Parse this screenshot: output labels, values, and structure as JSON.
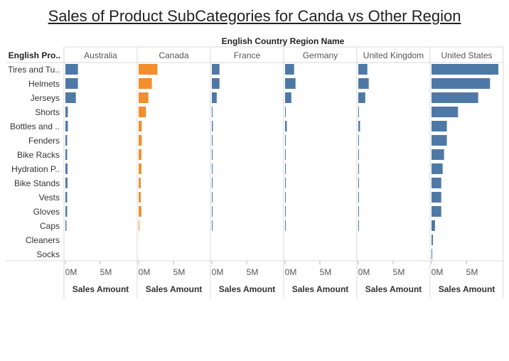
{
  "chart_data": {
    "type": "bar",
    "title": "Sales of Product SubCategories for Canda vs Other Region",
    "column_header": "English Country Region Name",
    "row_header": "English Pro..",
    "xlabel": "Sales Amount",
    "xlim": [
      0,
      10000000
    ],
    "x_ticks": [
      0,
      5000000
    ],
    "x_tick_labels": [
      "0M",
      "5M"
    ],
    "highlight_panel": "Canada",
    "colors": {
      "default": "#4e79a7",
      "highlight": "#f28e2b"
    },
    "categories": [
      "Tires and Tu..",
      "Helmets",
      "Jerseys",
      "Shorts",
      "Bottles and ..",
      "Fenders",
      "Bike Racks",
      "Hydration P..",
      "Bike Stands",
      "Vests",
      "Gloves",
      "Caps",
      "Cleaners",
      "Socks"
    ],
    "series": [
      {
        "name": "Australia",
        "values": [
          1800000,
          1800000,
          1500000,
          350000,
          350000,
          250000,
          250000,
          300000,
          300000,
          250000,
          250000,
          150000,
          0,
          0
        ]
      },
      {
        "name": "Canada",
        "values": [
          2700000,
          1900000,
          1400000,
          1050000,
          450000,
          450000,
          400000,
          400000,
          300000,
          300000,
          400000,
          100000,
          0,
          0
        ]
      },
      {
        "name": "France",
        "values": [
          1100000,
          1100000,
          700000,
          100000,
          150000,
          50000,
          100000,
          50000,
          100000,
          50000,
          50000,
          50000,
          0,
          0
        ]
      },
      {
        "name": "Germany",
        "values": [
          1300000,
          1500000,
          900000,
          100000,
          250000,
          50000,
          100000,
          50000,
          100000,
          100000,
          100000,
          100000,
          0,
          0
        ]
      },
      {
        "name": "United Kingdom",
        "values": [
          1300000,
          1500000,
          1000000,
          100000,
          250000,
          50000,
          100000,
          50000,
          100000,
          50000,
          100000,
          100000,
          0,
          0
        ]
      },
      {
        "name": "United States",
        "values": [
          9600000,
          8400000,
          6700000,
          3800000,
          2200000,
          2200000,
          1800000,
          1600000,
          1400000,
          1400000,
          1400000,
          500000,
          200000,
          100000
        ]
      }
    ]
  }
}
